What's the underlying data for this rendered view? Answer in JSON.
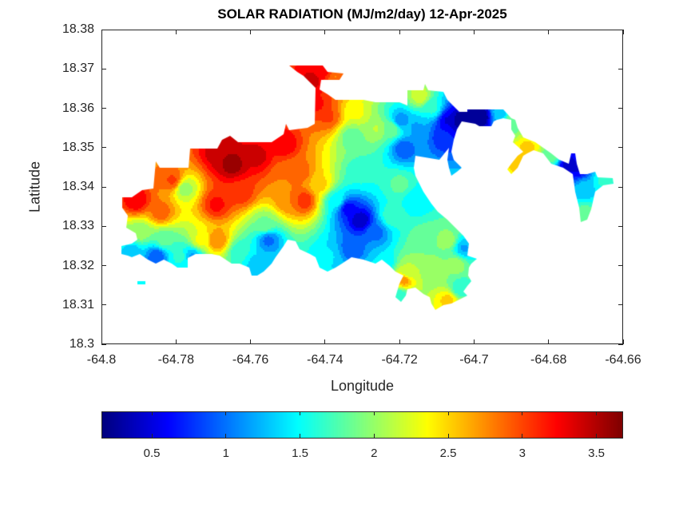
{
  "chart_data": {
    "type": "heatmap",
    "subtype": "filled-contour",
    "title": "SOLAR RADIATION (MJ/m2/day) 12-Apr-2025",
    "xlabel": "Longitude",
    "ylabel": "Latitude",
    "xlim": [
      -64.8,
      -64.66
    ],
    "ylim": [
      18.3,
      18.38
    ],
    "xticks": [
      "-64.8",
      "-64.78",
      "-64.76",
      "-64.74",
      "-64.72",
      "-64.7",
      "-64.68",
      "-64.66"
    ],
    "yticks": [
      "18.3",
      "18.31",
      "18.32",
      "18.33",
      "18.34",
      "18.35",
      "18.36",
      "18.37",
      "18.38"
    ],
    "colormap": "jet",
    "clim": [
      0.16,
      3.68
    ],
    "colorbar": {
      "location": "bottom",
      "ticks": [
        "0.5",
        "1",
        "1.5",
        "2",
        "2.5",
        "3",
        "3.5"
      ]
    },
    "grid": false,
    "field_points": [
      [
        -64.7651,
        18.3459,
        3.6
      ],
      [
        -64.7683,
        18.3489,
        3.5
      ],
      [
        -64.7586,
        18.3479,
        3.4
      ],
      [
        -64.7436,
        18.3672,
        3.4
      ],
      [
        -64.7404,
        18.3696,
        3.2
      ],
      [
        -64.7372,
        18.3682,
        2.8
      ],
      [
        -64.7425,
        18.3611,
        3.2
      ],
      [
        -64.7393,
        18.3581,
        3.0
      ],
      [
        -64.7511,
        18.351,
        3.3
      ],
      [
        -64.7629,
        18.3388,
        3.1
      ],
      [
        -64.7693,
        18.3357,
        3.2
      ],
      [
        -64.7693,
        18.3266,
        2.8
      ],
      [
        -64.7779,
        18.3398,
        2.0
      ],
      [
        -64.7811,
        18.3418,
        3.0
      ],
      [
        -64.7908,
        18.3368,
        3.3
      ],
      [
        -64.7843,
        18.3337,
        2.9
      ],
      [
        -64.7897,
        18.3286,
        2.0
      ],
      [
        -64.7919,
        18.3236,
        1.3
      ],
      [
        -64.7854,
        18.3226,
        0.9
      ],
      [
        -64.779,
        18.3226,
        1.6
      ],
      [
        -64.7833,
        18.3266,
        1.8
      ],
      [
        -64.7736,
        18.3266,
        2.3
      ],
      [
        -64.7758,
        18.3226,
        1.2
      ],
      [
        -64.7629,
        18.3236,
        1.6
      ],
      [
        -64.7586,
        18.3205,
        1.3
      ],
      [
        -64.7565,
        18.3307,
        1.9
      ],
      [
        -64.7554,
        18.3266,
        1.0
      ],
      [
        -64.75,
        18.3368,
        2.8
      ],
      [
        -64.7458,
        18.3368,
        3.1
      ],
      [
        -64.75,
        18.3429,
        2.8
      ],
      [
        -64.7415,
        18.3408,
        2.5
      ],
      [
        -64.7372,
        18.3368,
        1.5
      ],
      [
        -64.734,
        18.3347,
        0.6
      ],
      [
        -64.7307,
        18.3317,
        0.35
      ],
      [
        -64.7265,
        18.3286,
        1.0
      ],
      [
        -64.7329,
        18.3246,
        0.9
      ],
      [
        -64.7393,
        18.3226,
        1.4
      ],
      [
        -64.7307,
        18.3439,
        1.6
      ],
      [
        -64.7329,
        18.353,
        1.8
      ],
      [
        -64.7318,
        18.3591,
        2.3
      ],
      [
        -64.7265,
        18.355,
        2.1
      ],
      [
        -64.7222,
        18.355,
        1.9
      ],
      [
        -64.72,
        18.3571,
        1.1
      ],
      [
        -64.719,
        18.35,
        0.9
      ],
      [
        -64.7157,
        18.355,
        1.2
      ],
      [
        -64.7147,
        18.3632,
        2.2
      ],
      [
        -64.7114,
        18.3601,
        1.6
      ],
      [
        -64.7082,
        18.353,
        0.7
      ],
      [
        -64.7072,
        18.3571,
        0.5
      ],
      [
        -64.704,
        18.3571,
        0.2
      ],
      [
        -64.6986,
        18.3581,
        0.1
      ],
      [
        -64.6932,
        18.3591,
        1.3
      ],
      [
        -64.69,
        18.3571,
        1.9
      ],
      [
        -64.6857,
        18.35,
        2.5
      ],
      [
        -64.6879,
        18.3469,
        2.6
      ],
      [
        -64.6793,
        18.3479,
        1.8
      ],
      [
        -64.675,
        18.3459,
        0.4
      ],
      [
        -64.6724,
        18.3449,
        0.5
      ],
      [
        -64.6707,
        18.3398,
        1.3
      ],
      [
        -64.6654,
        18.3418,
        1.6
      ],
      [
        -64.6707,
        18.3327,
        1.9
      ],
      [
        -64.72,
        18.3408,
        1.8
      ],
      [
        -64.7157,
        18.3368,
        1.4
      ],
      [
        -64.7222,
        18.3327,
        1.7
      ],
      [
        -64.7136,
        18.3266,
        1.9
      ],
      [
        -64.7072,
        18.3266,
        2.0
      ],
      [
        -64.705,
        18.3205,
        2.0
      ],
      [
        -64.7029,
        18.3246,
        1.2
      ],
      [
        -64.7179,
        18.3185,
        2.1
      ],
      [
        -64.719,
        18.3165,
        2.7
      ],
      [
        -64.7114,
        18.3185,
        2.0
      ],
      [
        -64.7072,
        18.3114,
        2.5
      ],
      [
        -64.704,
        18.3144,
        1.6
      ],
      [
        -64.72,
        18.3124,
        1.6
      ],
      [
        -64.7243,
        18.3205,
        1.4
      ],
      [
        -64.7468,
        18.3439,
        2.9
      ]
    ]
  }
}
